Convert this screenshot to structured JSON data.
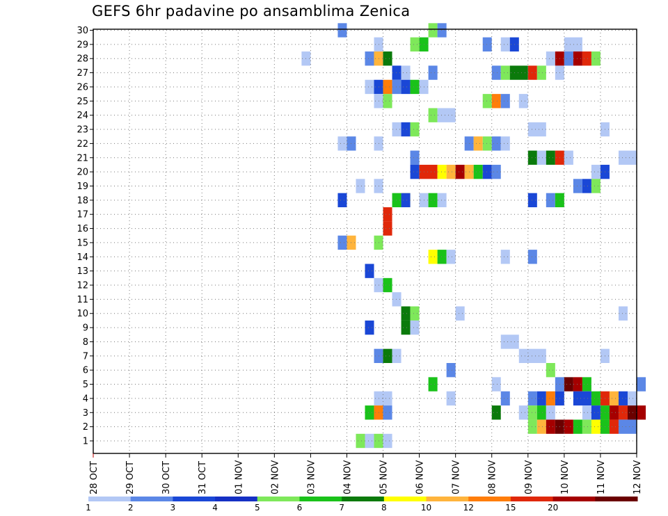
{
  "chart_data": {
    "type": "heatmap",
    "title": "GEFS 6hr padavine po ansamblima Zenica",
    "xlabel": "",
    "ylabel": "",
    "x_tick_labels": [
      "28 OCT",
      "29 OCT",
      "30 OCT",
      "31 OCT",
      "01 NOV",
      "02 NOV",
      "03 NOV",
      "04 NOV",
      "05 NOV",
      "06 NOV",
      "07 NOV",
      "08 NOV",
      "09 NOV",
      "10 NOV",
      "11 NOV",
      "12 NOV"
    ],
    "y_tick_labels": [
      "1",
      "2",
      "3",
      "4",
      "5",
      "6",
      "7",
      "8",
      "9",
      "10",
      "11",
      "12",
      "13",
      "14",
      "15",
      "16",
      "17",
      "18",
      "19",
      "20",
      "21",
      "22",
      "23",
      "24",
      "25",
      "26",
      "27",
      "28",
      "29",
      "30"
    ],
    "ylim": [
      1,
      30
    ],
    "x_range_days": [
      0,
      15
    ],
    "step_hours": 6,
    "grid": true,
    "colorbar": {
      "placement": "bottom",
      "labels": [
        "1",
        "2",
        "3",
        "4",
        "5",
        "6",
        "7",
        "8",
        "10",
        "12",
        "15",
        "20"
      ],
      "colors": [
        "#b3c8f5",
        "#5b87e6",
        "#1a47d6",
        "#1530c4",
        "#7ee85a",
        "#1ac21a",
        "#0b7a0b",
        "#ffff00",
        "#ffb43c",
        "#ff7d0a",
        "#e0280a",
        "#a50000",
        "#6b0000"
      ]
    },
    "cells_note": "member, start_day, n_steps, color_index",
    "cells": [
      [
        30,
        6.75,
        1,
        1
      ],
      [
        30,
        9.25,
        1,
        4
      ],
      [
        30,
        9.5,
        1,
        1
      ],
      [
        29,
        7.75,
        1,
        0
      ],
      [
        29,
        8.75,
        1,
        4
      ],
      [
        29,
        9.0,
        1,
        5
      ],
      [
        29,
        10.75,
        1,
        1
      ],
      [
        29,
        11.25,
        1,
        0
      ],
      [
        29,
        11.5,
        1,
        2
      ],
      [
        29,
        13.0,
        2,
        0
      ],
      [
        28,
        5.75,
        1,
        0
      ],
      [
        28,
        7.5,
        1,
        1
      ],
      [
        28,
        7.75,
        1,
        8
      ],
      [
        28,
        8.0,
        1,
        6
      ],
      [
        28,
        12.5,
        1,
        0
      ],
      [
        28,
        12.75,
        1,
        11
      ],
      [
        28,
        13.0,
        1,
        1
      ],
      [
        28,
        13.25,
        1,
        11
      ],
      [
        28,
        13.5,
        1,
        10
      ],
      [
        28,
        13.75,
        1,
        4
      ],
      [
        27,
        8.25,
        1,
        2
      ],
      [
        27,
        8.5,
        1,
        0
      ],
      [
        27,
        9.25,
        1,
        1
      ],
      [
        27,
        11.0,
        1,
        1
      ],
      [
        27,
        11.25,
        1,
        4
      ],
      [
        27,
        11.5,
        2,
        6
      ],
      [
        27,
        12.0,
        1,
        10
      ],
      [
        27,
        12.25,
        1,
        4
      ],
      [
        27,
        12.75,
        1,
        0
      ],
      [
        26,
        7.5,
        1,
        0
      ],
      [
        26,
        7.75,
        1,
        2
      ],
      [
        26,
        8.0,
        1,
        9
      ],
      [
        26,
        8.25,
        1,
        1
      ],
      [
        26,
        8.5,
        1,
        2
      ],
      [
        26,
        8.75,
        1,
        5
      ],
      [
        26,
        9.0,
        1,
        0
      ],
      [
        25,
        7.75,
        1,
        0
      ],
      [
        25,
        8.0,
        1,
        4
      ],
      [
        25,
        10.75,
        1,
        4
      ],
      [
        25,
        11.0,
        1,
        9
      ],
      [
        25,
        11.25,
        1,
        1
      ],
      [
        25,
        11.75,
        1,
        0
      ],
      [
        24,
        9.25,
        1,
        4
      ],
      [
        24,
        9.5,
        2,
        0
      ],
      [
        23,
        8.25,
        1,
        0
      ],
      [
        23,
        8.5,
        1,
        2
      ],
      [
        23,
        8.75,
        1,
        4
      ],
      [
        23,
        12.0,
        2,
        0
      ],
      [
        23,
        14.0,
        1,
        0
      ],
      [
        22,
        6.75,
        1,
        0
      ],
      [
        22,
        7.0,
        1,
        1
      ],
      [
        22,
        7.75,
        1,
        0
      ],
      [
        22,
        10.25,
        1,
        1
      ],
      [
        22,
        10.5,
        1,
        8
      ],
      [
        22,
        10.75,
        1,
        4
      ],
      [
        22,
        11.0,
        1,
        1
      ],
      [
        22,
        11.25,
        1,
        0
      ],
      [
        21,
        8.75,
        1,
        1
      ],
      [
        21,
        12.0,
        1,
        6
      ],
      [
        21,
        12.25,
        1,
        0
      ],
      [
        21,
        12.5,
        1,
        6
      ],
      [
        21,
        12.75,
        1,
        10
      ],
      [
        21,
        13.0,
        1,
        0
      ],
      [
        21,
        14.5,
        2,
        0
      ],
      [
        20,
        8.75,
        1,
        2
      ],
      [
        20,
        9.0,
        2,
        10
      ],
      [
        20,
        9.5,
        1,
        7
      ],
      [
        20,
        9.75,
        1,
        8
      ],
      [
        20,
        10.0,
        1,
        11
      ],
      [
        20,
        10.25,
        1,
        8
      ],
      [
        20,
        10.5,
        1,
        5
      ],
      [
        20,
        10.75,
        1,
        2
      ],
      [
        20,
        11.0,
        1,
        1
      ],
      [
        20,
        13.75,
        1,
        0
      ],
      [
        20,
        14.0,
        1,
        2
      ],
      [
        19,
        7.25,
        1,
        0
      ],
      [
        19,
        7.75,
        1,
        0
      ],
      [
        19,
        13.25,
        1,
        1
      ],
      [
        19,
        13.5,
        1,
        2
      ],
      [
        19,
        13.75,
        1,
        4
      ],
      [
        18,
        8.5,
        1,
        7
      ],
      [
        18,
        6.75,
        1,
        2
      ],
      [
        18,
        8.25,
        1,
        5
      ],
      [
        18,
        8.5,
        1,
        2
      ],
      [
        18,
        9.0,
        1,
        0
      ],
      [
        18,
        9.25,
        1,
        5
      ],
      [
        18,
        9.5,
        1,
        0
      ],
      [
        18,
        12.0,
        1,
        2
      ],
      [
        18,
        12.5,
        1,
        1
      ],
      [
        18,
        12.75,
        1,
        5
      ],
      [
        17,
        8.0,
        1,
        10
      ],
      [
        16,
        8.0,
        1,
        10
      ],
      [
        15,
        6.75,
        1,
        1
      ],
      [
        15,
        7.0,
        1,
        8
      ],
      [
        15,
        7.75,
        1,
        4
      ],
      [
        14,
        9.25,
        1,
        7
      ],
      [
        14,
        9.5,
        1,
        5
      ],
      [
        14,
        9.75,
        1,
        0
      ],
      [
        14,
        11.25,
        1,
        0
      ],
      [
        14,
        12.0,
        1,
        1
      ],
      [
        13,
        7.5,
        1,
        2
      ],
      [
        12,
        7.75,
        1,
        0
      ],
      [
        12,
        8.0,
        1,
        5
      ],
      [
        11,
        8.25,
        1,
        0
      ],
      [
        10,
        8.5,
        1,
        6
      ],
      [
        10,
        8.75,
        1,
        4
      ],
      [
        10,
        10.0,
        1,
        0
      ],
      [
        10,
        14.5,
        1,
        0
      ],
      [
        9,
        7.5,
        1,
        2
      ],
      [
        9,
        8.5,
        1,
        6
      ],
      [
        9,
        8.75,
        1,
        0
      ],
      [
        8,
        11.25,
        2,
        0
      ],
      [
        7,
        7.75,
        1,
        1
      ],
      [
        7,
        8.0,
        1,
        6
      ],
      [
        7,
        8.25,
        1,
        0
      ],
      [
        7,
        11.75,
        3,
        0
      ],
      [
        7,
        14.0,
        1,
        0
      ],
      [
        6,
        9.75,
        1,
        1
      ],
      [
        6,
        12.5,
        1,
        4
      ],
      [
        5,
        9.25,
        1,
        5
      ],
      [
        5,
        11.0,
        1,
        0
      ],
      [
        5,
        12.75,
        1,
        1
      ],
      [
        5,
        13.0,
        1,
        12
      ],
      [
        5,
        13.25,
        1,
        11
      ],
      [
        5,
        13.5,
        1,
        5
      ],
      [
        5,
        15.0,
        1,
        1
      ],
      [
        4,
        7.75,
        2,
        0
      ],
      [
        4,
        9.75,
        1,
        0
      ],
      [
        4,
        11.25,
        1,
        1
      ],
      [
        4,
        12.0,
        1,
        1
      ],
      [
        4,
        12.25,
        1,
        2
      ],
      [
        4,
        12.5,
        1,
        9
      ],
      [
        4,
        12.75,
        1,
        2
      ],
      [
        4,
        13.25,
        2,
        2
      ],
      [
        4,
        13.75,
        1,
        5
      ],
      [
        4,
        14.0,
        1,
        10
      ],
      [
        4,
        14.25,
        1,
        8
      ],
      [
        4,
        14.5,
        1,
        2
      ],
      [
        4,
        14.75,
        1,
        0
      ],
      [
        3,
        7.5,
        1,
        5
      ],
      [
        3,
        7.75,
        1,
        9
      ],
      [
        3,
        8.0,
        1,
        1
      ],
      [
        3,
        11.0,
        1,
        6
      ],
      [
        3,
        11.75,
        1,
        0
      ],
      [
        3,
        12.0,
        1,
        4
      ],
      [
        3,
        12.25,
        1,
        5
      ],
      [
        3,
        12.5,
        1,
        0
      ],
      [
        3,
        13.5,
        1,
        0
      ],
      [
        3,
        13.75,
        1,
        2
      ],
      [
        3,
        14.0,
        1,
        5
      ],
      [
        3,
        14.25,
        1,
        11
      ],
      [
        3,
        14.5,
        1,
        10
      ],
      [
        3,
        14.75,
        1,
        12
      ],
      [
        3,
        15.0,
        1,
        11
      ],
      [
        2,
        12.0,
        1,
        4
      ],
      [
        2,
        12.25,
        1,
        8
      ],
      [
        2,
        12.5,
        1,
        11
      ],
      [
        2,
        12.75,
        1,
        12
      ],
      [
        2,
        13.0,
        1,
        11
      ],
      [
        2,
        13.25,
        1,
        5
      ],
      [
        2,
        13.5,
        1,
        4
      ],
      [
        2,
        13.75,
        1,
        7
      ],
      [
        2,
        14.0,
        1,
        5
      ],
      [
        2,
        14.25,
        1,
        10
      ],
      [
        2,
        14.5,
        2,
        1
      ],
      [
        1,
        7.25,
        1,
        4
      ],
      [
        1,
        7.5,
        1,
        0
      ],
      [
        1,
        7.75,
        1,
        4
      ],
      [
        1,
        8.0,
        1,
        0
      ]
    ]
  }
}
